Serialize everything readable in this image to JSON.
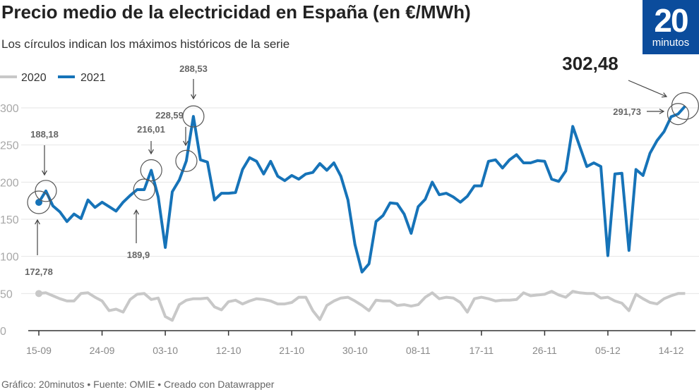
{
  "title": "Precio medio de la electricidad en España (en €/MWh)",
  "subtitle": "Los círculos indican los máximos históricos de la serie",
  "logo": {
    "number": "20",
    "word": "minutos",
    "color": "#0b4c9c"
  },
  "footer": "Gráfico: 20minutos • Fuente: OMIE • Creado con Datawrapper",
  "chart_data": {
    "type": "line",
    "title": "Precio medio de la electricidad en España (en €/MWh)",
    "ylim": [
      0,
      300
    ],
    "yticks": [
      0,
      50,
      100,
      150,
      200,
      250,
      300
    ],
    "xtick_labels": [
      "15-09",
      "24-09",
      "03-10",
      "12-10",
      "21-10",
      "30-10",
      "08-11",
      "17-11",
      "26-11",
      "05-12",
      "14-12"
    ],
    "grid": true,
    "legend": "top-left",
    "x": [
      "15-09",
      "16-09",
      "17-09",
      "18-09",
      "19-09",
      "20-09",
      "21-09",
      "22-09",
      "23-09",
      "24-09",
      "25-09",
      "26-09",
      "27-09",
      "28-09",
      "29-09",
      "30-09",
      "01-10",
      "02-10",
      "03-10",
      "04-10",
      "05-10",
      "06-10",
      "07-10",
      "08-10",
      "09-10",
      "10-10",
      "11-10",
      "12-10",
      "13-10",
      "14-10",
      "15-10",
      "16-10",
      "17-10",
      "18-10",
      "19-10",
      "20-10",
      "21-10",
      "22-10",
      "23-10",
      "24-10",
      "25-10",
      "26-10",
      "27-10",
      "28-10",
      "29-10",
      "30-10",
      "31-10",
      "01-11",
      "02-11",
      "03-11",
      "04-11",
      "05-11",
      "06-11",
      "07-11",
      "08-11",
      "09-11",
      "10-11",
      "11-11",
      "12-11",
      "13-11",
      "14-11",
      "15-11",
      "16-11",
      "17-11",
      "18-11",
      "19-11",
      "20-11",
      "21-11",
      "22-11",
      "23-11",
      "24-11",
      "25-11",
      "26-11",
      "27-11",
      "28-11",
      "29-11",
      "30-11",
      "01-12",
      "02-12",
      "03-12",
      "04-12",
      "05-12",
      "06-12",
      "07-12",
      "08-12",
      "09-12",
      "10-12",
      "11-12",
      "12-12",
      "13-12",
      "14-12",
      "15-12",
      "16-12"
    ],
    "series": [
      {
        "name": "2020",
        "color": "#c8c8c8",
        "values": [
          50,
          51,
          47,
          43,
          40,
          40,
          50,
          51,
          45,
          40,
          27,
          29,
          25,
          42,
          49,
          50,
          42,
          44,
          19,
          14,
          35,
          41,
          43,
          43,
          44,
          32,
          28,
          39,
          41,
          36,
          40,
          43,
          42,
          40,
          36,
          36,
          38,
          45,
          45,
          27,
          15,
          34,
          40,
          44,
          45,
          40,
          34,
          27,
          41,
          40,
          40,
          34,
          35,
          33,
          35,
          45,
          51,
          43,
          45,
          44,
          38,
          25,
          43,
          45,
          43,
          40,
          41,
          41,
          42,
          51,
          47,
          48,
          49,
          53,
          48,
          45,
          53,
          51,
          50,
          50,
          44,
          45,
          40,
          37,
          27,
          49,
          43,
          38,
          36,
          43,
          47,
          50,
          50
        ]
      },
      {
        "name": "2021",
        "color": "#1673b8",
        "values": [
          172.78,
          188.18,
          168,
          160,
          147,
          157,
          151,
          176,
          166,
          173,
          167,
          161,
          173,
          182,
          190,
          189.9,
          216.01,
          180,
          112,
          187,
          203,
          228.59,
          288.53,
          230,
          227,
          176,
          185,
          185,
          186,
          217,
          233,
          228,
          211,
          228,
          208,
          202,
          209,
          204,
          211,
          213,
          225,
          216,
          226,
          208,
          176,
          116,
          79,
          90,
          147,
          155,
          172,
          171,
          157,
          131,
          167,
          177,
          200,
          183,
          185,
          180,
          173,
          181,
          195,
          195,
          228,
          230,
          219,
          230,
          237,
          226,
          226,
          229,
          228,
          204,
          201,
          215,
          275,
          248,
          221,
          226,
          221,
          101,
          211,
          212,
          108,
          217,
          209,
          239,
          256,
          268,
          288,
          291.73,
          302.48
        ]
      }
    ],
    "annotations": [
      {
        "label": "172,78",
        "x": "15-09"
      },
      {
        "label": "188,18",
        "x": "16-09"
      },
      {
        "label": "189,9",
        "x": "30-09"
      },
      {
        "label": "216,01",
        "x": "01-10"
      },
      {
        "label": "228,59",
        "x": "06-10"
      },
      {
        "label": "288,53",
        "x": "07-10"
      },
      {
        "label": "291,73",
        "x": "15-12"
      },
      {
        "label": "302,48",
        "x": "16-12"
      }
    ]
  }
}
